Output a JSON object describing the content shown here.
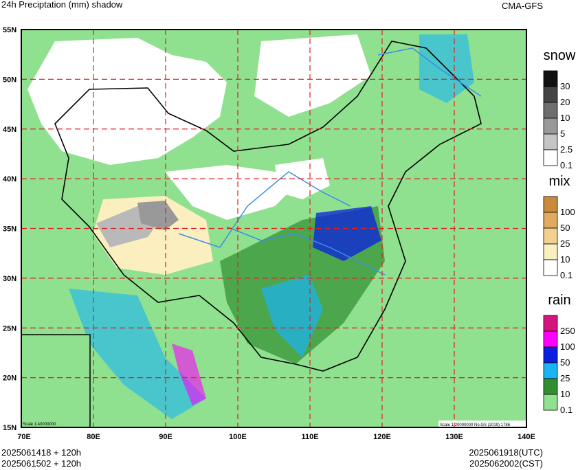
{
  "header": {
    "title": "24h Preciptation (mm) shadow",
    "source": "CMA-GFS"
  },
  "axes": {
    "lon": [
      "70E",
      "80E",
      "90E",
      "100E",
      "110E",
      "120E",
      "130E",
      "140E"
    ],
    "lat": [
      "55N",
      "50N",
      "45N",
      "40N",
      "35N",
      "30N",
      "25N",
      "20N",
      "15N"
    ]
  },
  "scale": {
    "inset": "Scale 1:40000000",
    "main": "Scale 1:20000000 No.GS (2019) 1786"
  },
  "legend": [
    {
      "title": "snow",
      "items": [
        {
          "label": "30",
          "color": "#111111"
        },
        {
          "label": "20",
          "color": "#444444"
        },
        {
          "label": "10",
          "color": "#6e6e6e"
        },
        {
          "label": "5",
          "color": "#999999"
        },
        {
          "label": "2.5",
          "color": "#c4c4c4"
        },
        {
          "label": "0.1",
          "color": "#ffffff"
        }
      ]
    },
    {
      "title": "mix",
      "items": [
        {
          "label": "100",
          "color": "#c98a3c"
        },
        {
          "label": "50",
          "color": "#e0aa60"
        },
        {
          "label": "25",
          "color": "#f2d08f"
        },
        {
          "label": "10",
          "color": "#fbefc0"
        },
        {
          "label": "0.1",
          "color": "#ffffff"
        }
      ]
    },
    {
      "title": "rain",
      "items": [
        {
          "label": "250",
          "color": "#d4147f"
        },
        {
          "label": "100",
          "color": "#ff00ff"
        },
        {
          "label": "50",
          "color": "#0a1fe0"
        },
        {
          "label": "25",
          "color": "#19b4f5"
        },
        {
          "label": "10",
          "color": "#2f8f2f"
        },
        {
          "label": "0.1",
          "color": "#8fe08f"
        }
      ]
    }
  ],
  "footer": {
    "init_utc": "2025061418 + 120h",
    "init_cst": "2025061502 + 120h",
    "valid_utc": "2025061918(UTC)",
    "valid_cst": "2025062002(CST)"
  }
}
